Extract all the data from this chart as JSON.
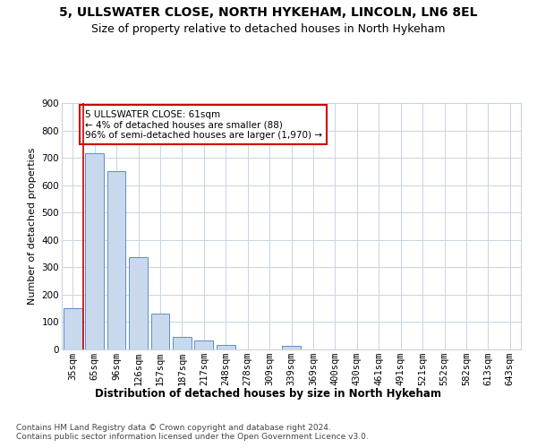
{
  "title": "5, ULLSWATER CLOSE, NORTH HYKEHAM, LINCOLN, LN6 8EL",
  "subtitle": "Size of property relative to detached houses in North Hykeham",
  "xlabel": "Distribution of detached houses by size in North Hykeham",
  "ylabel": "Number of detached properties",
  "categories": [
    "35sqm",
    "65sqm",
    "96sqm",
    "126sqm",
    "157sqm",
    "187sqm",
    "217sqm",
    "248sqm",
    "278sqm",
    "309sqm",
    "339sqm",
    "369sqm",
    "400sqm",
    "430sqm",
    "461sqm",
    "491sqm",
    "521sqm",
    "552sqm",
    "582sqm",
    "613sqm",
    "643sqm"
  ],
  "values": [
    150,
    717,
    650,
    337,
    130,
    46,
    33,
    15,
    0,
    0,
    12,
    0,
    0,
    0,
    0,
    0,
    0,
    0,
    0,
    0,
    0
  ],
  "bar_color": "#c9d9ed",
  "bar_edge_color": "#5b8dc8",
  "highlight_line_color": "#cc0000",
  "annotation_text": "5 ULLSWATER CLOSE: 61sqm\n← 4% of detached houses are smaller (88)\n96% of semi-detached houses are larger (1,970) →",
  "annotation_box_color": "#ffffff",
  "annotation_box_edge": "#cc0000",
  "ylim": [
    0,
    900
  ],
  "yticks": [
    0,
    100,
    200,
    300,
    400,
    500,
    600,
    700,
    800,
    900
  ],
  "grid_color": "#c8d4e3",
  "footer": "Contains HM Land Registry data © Crown copyright and database right 2024.\nContains public sector information licensed under the Open Government Licence v3.0.",
  "title_fontsize": 10,
  "subtitle_fontsize": 9,
  "xlabel_fontsize": 8.5,
  "ylabel_fontsize": 8,
  "tick_fontsize": 7.5,
  "footer_fontsize": 6.5,
  "annotation_fontsize": 7.5
}
